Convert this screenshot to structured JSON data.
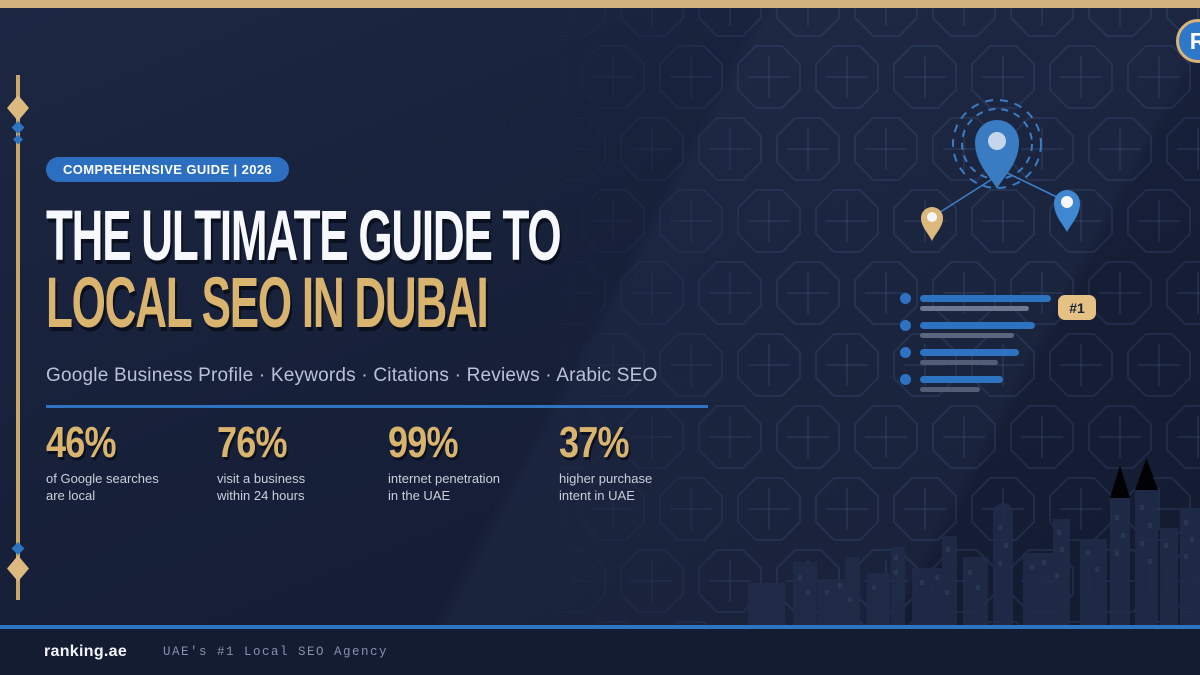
{
  "logo": {
    "letter": "R"
  },
  "badge": {
    "label": "COMPREHENSIVE GUIDE | 2026"
  },
  "title": {
    "line1": "THE ULTIMATE GUIDE TO",
    "line2": "LOCAL SEO IN DUBAI"
  },
  "subtitle": {
    "text": "Google Business Profile · Keywords · Citations · Reviews · Arabic SEO"
  },
  "stats": [
    {
      "value": "46%",
      "label_line1": "of Google searches",
      "label_line2": "are local"
    },
    {
      "value": "76%",
      "label_line1": "visit a business",
      "label_line2": "within 24 hours"
    },
    {
      "value": "99%",
      "label_line1": "internet penetration",
      "label_line2": "in the UAE"
    },
    {
      "value": "37%",
      "label_line1": "higher purchase",
      "label_line2": "intent in UAE"
    }
  ],
  "illustration": {
    "rank_badge": "#1",
    "serp_rows": [
      {
        "title_width": 131,
        "desc_width": 109
      },
      {
        "title_width": 115,
        "desc_width": 94
      },
      {
        "title_width": 99,
        "desc_width": 78
      },
      {
        "title_width": 83,
        "desc_width": 60
      }
    ]
  },
  "footer": {
    "brand": "ranking.ae",
    "tagline": "UAE's #1 Local SEO Agency"
  },
  "colors": {
    "background": "#172039",
    "gold": "#d2b27e",
    "title_gold": "#d9b46f",
    "accent_blue": "#2e74c0",
    "badge_blue": "#2c6fc0",
    "rank_badge_gold": "#e5c183"
  }
}
